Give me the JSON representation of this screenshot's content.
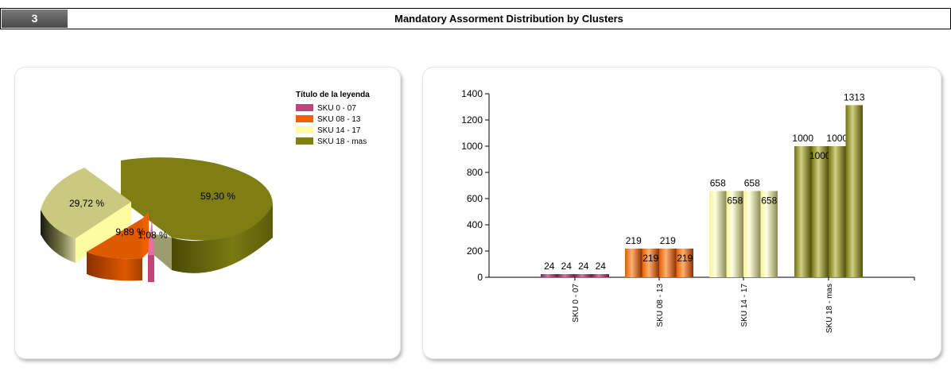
{
  "header": {
    "number": "3",
    "title": "Mandatory Assorment Distribution by Clusters"
  },
  "colors": {
    "sku0": "#c84078",
    "sku08": "#f06000",
    "sku14": "#fcfca0",
    "sku18": "#808010"
  },
  "chart_data": [
    {
      "type": "pie",
      "title": "",
      "legend": {
        "title": "Título de la leyenda",
        "placement": "top-right"
      },
      "series": [
        {
          "name": "SKU 0 - 07",
          "label": "1,08 %",
          "value": 1.08
        },
        {
          "name": "SKU 08 - 13",
          "label": "9,89 %",
          "value": 9.89
        },
        {
          "name": "SKU 14 - 17",
          "label": "29,72 %",
          "value": 29.72
        },
        {
          "name": "SKU 18 - mas",
          "label": "59,30 %",
          "value": 59.3
        }
      ]
    },
    {
      "type": "bar",
      "title": "",
      "categories": [
        "SKU 0 - 07",
        "SKU 08 - 13",
        "SKU 14 - 17",
        "SKU 18 - mas"
      ],
      "values": [
        [
          24,
          24,
          24,
          24
        ],
        [
          219,
          219,
          219,
          219
        ],
        [
          658,
          658,
          658,
          658
        ],
        [
          1000,
          1000,
          1000,
          1313
        ]
      ],
      "ylim": [
        0,
        1400
      ],
      "yticks": [
        "0",
        "200",
        "400",
        "600",
        "800",
        "1000",
        "1200",
        "1400"
      ],
      "grid": false
    }
  ]
}
